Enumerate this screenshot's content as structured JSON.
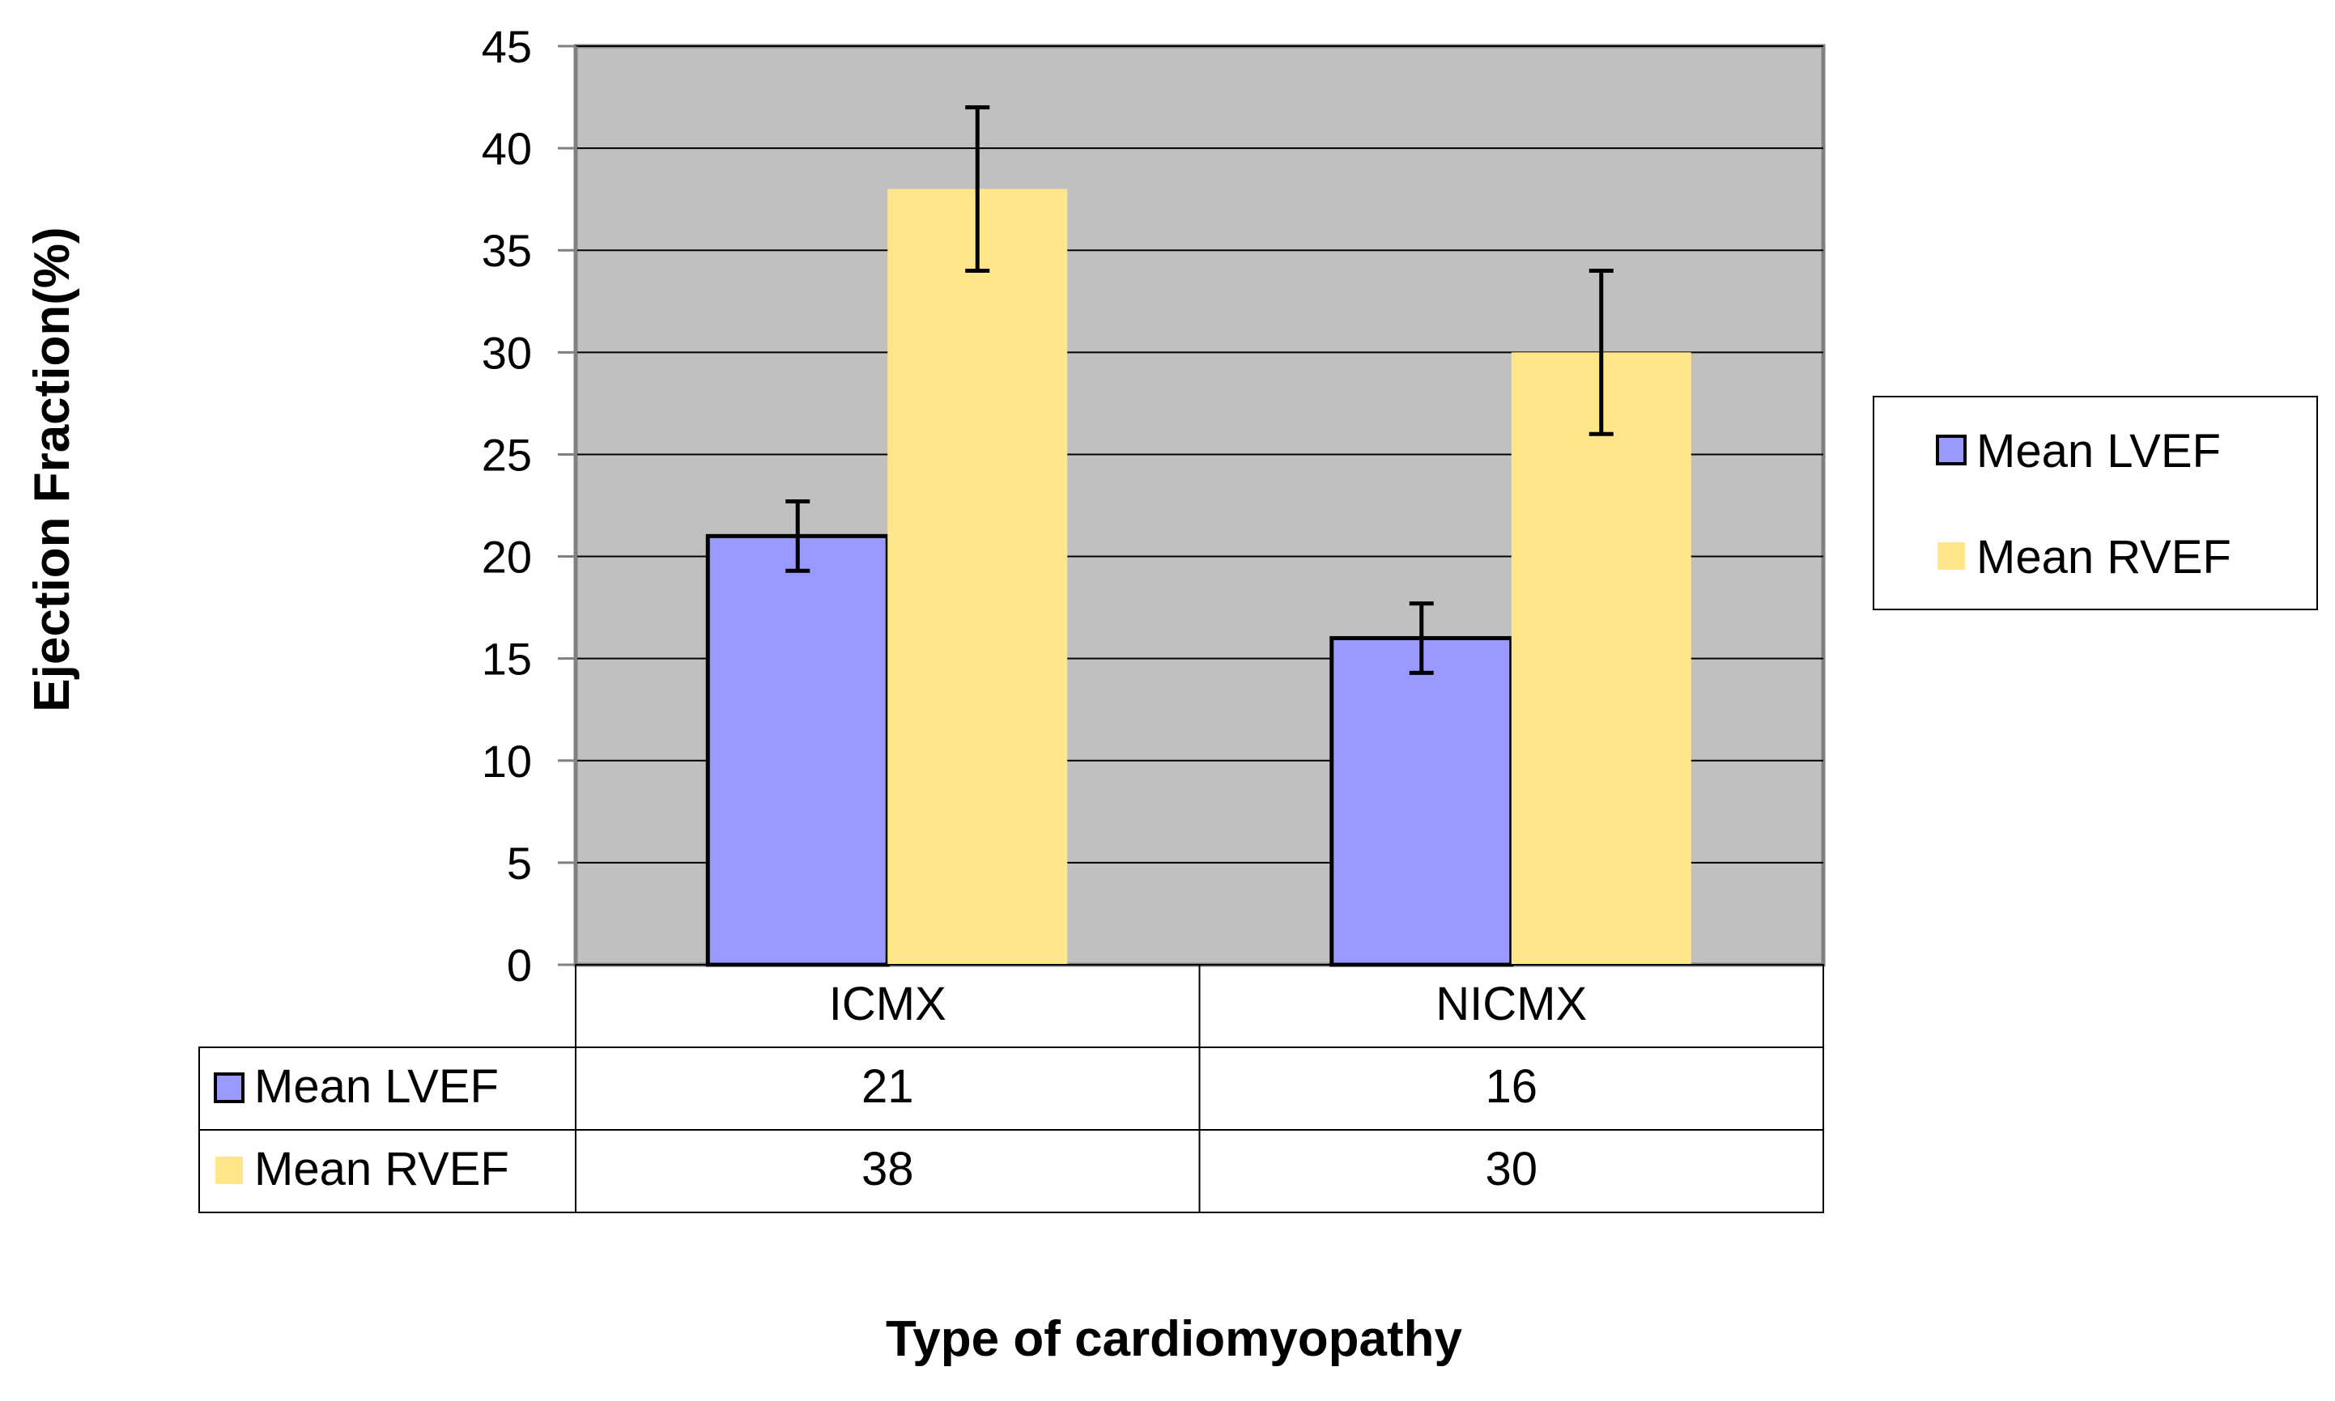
{
  "chart_data": {
    "type": "bar",
    "title": "",
    "xlabel": "Type of cardiomyopathy",
    "ylabel": "Ejection Fraction(%)",
    "ylim": [
      0,
      45
    ],
    "yticks": [
      0,
      5,
      10,
      15,
      20,
      25,
      30,
      35,
      40,
      45
    ],
    "tick_labels": [
      "0",
      "5",
      "10",
      "15",
      "20",
      "25",
      "30",
      "35",
      "40",
      "45"
    ],
    "grid": true,
    "legend_position": "right",
    "categories": [
      "ICMX",
      "NICMX"
    ],
    "series": [
      {
        "name": "Mean LVEF",
        "values": [
          21,
          16
        ],
        "error": [
          1.7,
          1.7
        ],
        "color": "#9999ff",
        "outline": "#000000",
        "value_labels": [
          "21",
          "16"
        ]
      },
      {
        "name": "Mean RVEF",
        "values": [
          38,
          30
        ],
        "error": [
          4,
          4
        ],
        "color": "#ffe68a",
        "outline": "none",
        "value_labels": [
          "38",
          "30"
        ]
      }
    ],
    "colors": {
      "plot_background": "#c0c0c0",
      "grid": "#000000",
      "text": "#000000"
    }
  }
}
